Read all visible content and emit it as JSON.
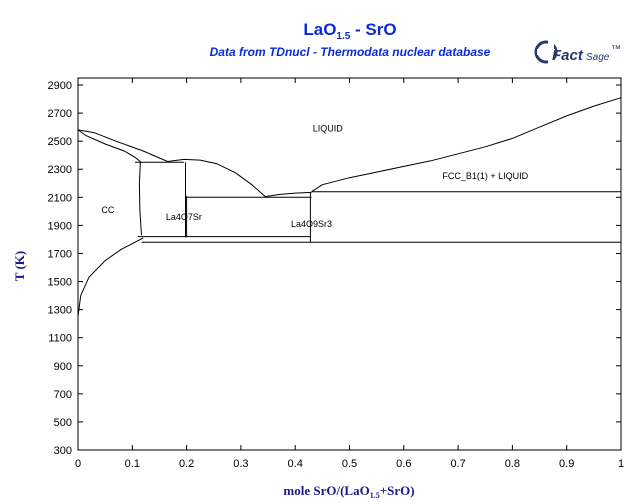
{
  "header": {
    "title_main": "LaO",
    "title_sub": "1.5",
    "title_rest": " - SrO",
    "subtitle": "Data from TDnucl - Thermodata nuclear database"
  },
  "logo": {
    "text_a": "Fact",
    "text_b": "Sage",
    "mark": "™",
    "icon": "factsage-logo-icon"
  },
  "chart_data": {
    "type": "phase-diagram",
    "xlabel_prefix": "mole SrO/(LaO",
    "xlabel_sub": "1.5",
    "xlabel_suffix": "+SrO)",
    "ylabel": "T (K)",
    "xlim": [
      0,
      1
    ],
    "ylim": [
      300,
      2950
    ],
    "x_ticks": [
      "0",
      "0.1",
      "0.2",
      "0.3",
      "0.4",
      "0.5",
      "0.6",
      "0.7",
      "0.8",
      "0.9",
      "1"
    ],
    "x_tick_values": [
      0,
      0.1,
      0.2,
      0.3,
      0.4,
      0.5,
      0.6,
      0.7,
      0.8,
      0.9,
      1
    ],
    "y_ticks": [
      "300",
      "500",
      "700",
      "900",
      "1100",
      "1300",
      "1500",
      "1700",
      "1900",
      "2100",
      "2300",
      "2500",
      "2700",
      "2900"
    ],
    "y_tick_values": [
      300,
      500,
      700,
      900,
      1100,
      1300,
      1500,
      1700,
      1900,
      2100,
      2300,
      2500,
      2700,
      2900
    ],
    "regions": [
      {
        "label": "LIQUID",
        "x": 0.46,
        "y": 2570
      },
      {
        "label": "FCC_B1(1) + LIQUID",
        "x": 0.75,
        "y": 2230
      },
      {
        "label": "CC",
        "x": 0.055,
        "y": 1990
      },
      {
        "label": "La4O7Sr",
        "x": 0.195,
        "y": 1940
      },
      {
        "label": "La4O9Sr3",
        "x": 0.43,
        "y": 1890
      }
    ],
    "lines": [
      {
        "name": "liquidus-left-upper",
        "points": [
          [
            0,
            2580
          ],
          [
            0.03,
            2560
          ],
          [
            0.07,
            2500
          ],
          [
            0.12,
            2430
          ],
          [
            0.165,
            2355
          ]
        ]
      },
      {
        "name": "liquidus-left-lower",
        "points": [
          [
            0,
            2580
          ],
          [
            0.015,
            2540
          ],
          [
            0.05,
            2480
          ],
          [
            0.085,
            2430
          ],
          [
            0.105,
            2385
          ],
          [
            0.115,
            2355
          ]
        ]
      },
      {
        "name": "solidus-cc",
        "points": [
          [
            0.115,
            2355
          ],
          [
            0.113,
            2200
          ],
          [
            0.114,
            2000
          ],
          [
            0.117,
            1830
          ]
        ]
      },
      {
        "name": "solvus-cc",
        "points": [
          [
            0,
            1250
          ],
          [
            0.005,
            1400
          ],
          [
            0.02,
            1530
          ],
          [
            0.05,
            1650
          ],
          [
            0.08,
            1730
          ],
          [
            0.11,
            1790
          ],
          [
            0.12,
            1810
          ]
        ]
      },
      {
        "name": "tie-line-2350",
        "points": [
          [
            0.105,
            2350
          ],
          [
            0.195,
            2350
          ]
        ]
      },
      {
        "name": "liquidus-la4o7sr",
        "points": [
          [
            0.165,
            2355
          ],
          [
            0.195,
            2370
          ],
          [
            0.225,
            2365
          ],
          [
            0.255,
            2340
          ],
          [
            0.29,
            2275
          ],
          [
            0.32,
            2190
          ],
          [
            0.345,
            2105
          ]
        ]
      },
      {
        "name": "la4o7sr-left",
        "points": [
          [
            0.198,
            2350
          ],
          [
            0.198,
            1815
          ]
        ]
      },
      {
        "name": "la4o7sr-right",
        "points": [
          [
            0.2,
            2110
          ],
          [
            0.2,
            1815
          ]
        ]
      },
      {
        "name": "tie-line-2100",
        "points": [
          [
            0.2,
            2100
          ],
          [
            0.43,
            2100
          ]
        ]
      },
      {
        "name": "liquidus-la4o9sr3-left",
        "points": [
          [
            0.345,
            2105
          ],
          [
            0.37,
            2120
          ],
          [
            0.4,
            2130
          ],
          [
            0.43,
            2135
          ]
        ]
      },
      {
        "name": "la4o9sr3",
        "points": [
          [
            0.428,
            2135
          ],
          [
            0.428,
            1780
          ]
        ]
      },
      {
        "name": "tie-line-1820",
        "points": [
          [
            0.11,
            1820
          ],
          [
            0.428,
            1820
          ]
        ]
      },
      {
        "name": "tie-line-1780",
        "points": [
          [
            0.117,
            1780
          ],
          [
            1,
            1780
          ]
        ]
      },
      {
        "name": "fcc-liquid-line",
        "points": [
          [
            0.43,
            2140
          ],
          [
            1,
            2140
          ]
        ]
      },
      {
        "name": "liquidus-right",
        "points": [
          [
            0.43,
            2140
          ],
          [
            0.45,
            2190
          ],
          [
            0.5,
            2240
          ],
          [
            0.55,
            2280
          ],
          [
            0.6,
            2320
          ],
          [
            0.65,
            2360
          ],
          [
            0.7,
            2410
          ],
          [
            0.75,
            2460
          ],
          [
            0.8,
            2520
          ],
          [
            0.85,
            2600
          ],
          [
            0.9,
            2680
          ],
          [
            0.95,
            2750
          ],
          [
            1,
            2810
          ]
        ]
      }
    ]
  }
}
